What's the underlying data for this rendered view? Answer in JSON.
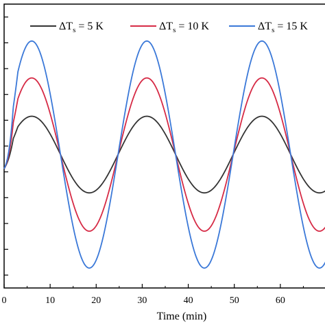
{
  "chart_data": {
    "type": "line",
    "xlabel": "Time (min)",
    "ylabel": "",
    "title": "",
    "xlim": [
      0,
      70
    ],
    "ylim": [
      0,
      1
    ],
    "x_ticks": [
      0,
      10,
      20,
      30,
      40,
      50,
      60
    ],
    "y_tick_count": 11,
    "grid": false,
    "legend_position": "top",
    "period_min": 25,
    "series": [
      {
        "name": "ΔT_s = 5  K",
        "label_parts": [
          "ΔT",
          "s",
          " =  5  K"
        ],
        "color": "#333333",
        "mean": 0.47,
        "amplitude": 0.135
      },
      {
        "name": "ΔT_s = 10 K",
        "label_parts": [
          "ΔT",
          "s",
          " = 10 K"
        ],
        "color": "#d62a45",
        "mean": 0.47,
        "amplitude": 0.27
      },
      {
        "name": "ΔT_s = 15 K",
        "label_parts": [
          "ΔT",
          "s",
          " = 15 K"
        ],
        "color": "#3a78d8",
        "mean": 0.47,
        "amplitude": 0.4
      }
    ]
  }
}
